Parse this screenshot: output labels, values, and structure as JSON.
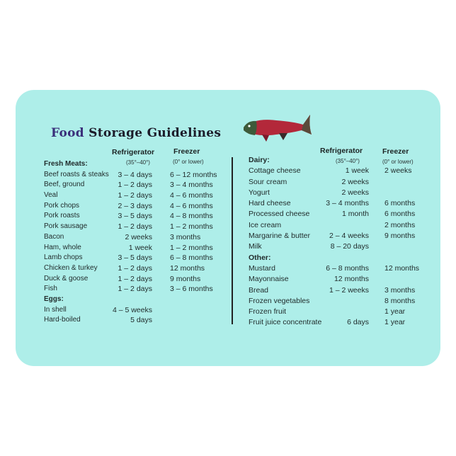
{
  "title": {
    "first": "Food",
    "rest": "Storage Guidelines"
  },
  "columns": {
    "refrigerator": "Refrigerator",
    "refrigerator_temp": "(35°–40°)",
    "freezer": "Freezer",
    "freezer_temp": "(0° or lower)"
  },
  "left": [
    {
      "section": "Fresh Meats:"
    },
    {
      "name": "Beef roasts & steaks",
      "refrigerator": "3 – 4 days",
      "freezer": "6 – 12 months"
    },
    {
      "name": "Beef, ground",
      "refrigerator": "1 – 2 days",
      "freezer": "3 – 4 months"
    },
    {
      "name": "Veal",
      "refrigerator": "1 – 2 days",
      "freezer": "4 – 6 months"
    },
    {
      "name": "Pork chops",
      "refrigerator": "2 – 3 days",
      "freezer": "4 – 6 months"
    },
    {
      "name": "Pork roasts",
      "refrigerator": "3 – 5 days",
      "freezer": "4 – 8 months"
    },
    {
      "name": "Pork sausage",
      "refrigerator": "1 – 2 days",
      "freezer": "1 – 2 months"
    },
    {
      "name": "Bacon",
      "refrigerator": "2 weeks",
      "freezer": "3 months"
    },
    {
      "name": "Ham, whole",
      "refrigerator": "1 week",
      "freezer": "1 – 2 months"
    },
    {
      "name": "Lamb chops",
      "refrigerator": "3 – 5 days",
      "freezer": "6 – 8 months"
    },
    {
      "name": "Chicken & turkey",
      "refrigerator": "1 – 2 days",
      "freezer": "12 months"
    },
    {
      "name": "Duck & goose",
      "refrigerator": "1 – 2 days",
      "freezer": "9 months"
    },
    {
      "name": "Fish",
      "refrigerator": "1 – 2 days",
      "freezer": "3 – 6 months"
    },
    {
      "section": "Eggs:"
    },
    {
      "name": "In shell",
      "refrigerator": "4 – 5 weeks",
      "freezer": ""
    },
    {
      "name": "Hard-boiled",
      "refrigerator": "5 days",
      "freezer": ""
    }
  ],
  "right": [
    {
      "section": "Dairy:"
    },
    {
      "name": "Cottage cheese",
      "refrigerator": "1 week",
      "freezer": "2 weeks"
    },
    {
      "name": "Sour cream",
      "refrigerator": "2 weeks",
      "freezer": ""
    },
    {
      "name": "Yogurt",
      "refrigerator": "2 weeks",
      "freezer": ""
    },
    {
      "name": "Hard cheese",
      "refrigerator": "3 – 4 months",
      "freezer": "6 months"
    },
    {
      "name": "Processed cheese",
      "refrigerator": "1 month",
      "freezer": "6 months"
    },
    {
      "name": "Ice cream",
      "refrigerator": "",
      "freezer": "2 months"
    },
    {
      "name": "Margarine & butter",
      "refrigerator": "2 – 4 weeks",
      "freezer": "9 months"
    },
    {
      "name": "Milk",
      "refrigerator": "8 – 20 days",
      "freezer": ""
    },
    {
      "section": "Other:"
    },
    {
      "name": "Mustard",
      "refrigerator": "6 – 8 months",
      "freezer": "12 months"
    },
    {
      "name": "Mayonnaise",
      "refrigerator": "12 months",
      "freezer": ""
    },
    {
      "name": "Bread",
      "refrigerator": "1 – 2 weeks",
      "freezer": "3 months"
    },
    {
      "name": "Frozen vegetables",
      "refrigerator": "",
      "freezer": "8 months"
    },
    {
      "name": "Frozen fruit",
      "refrigerator": "",
      "freezer": "1 year"
    },
    {
      "name": "Fruit juice concentrate",
      "refrigerator": "6 days",
      "freezer": "1 year"
    }
  ],
  "colors": {
    "card": "#aeeee9",
    "text": "#1f2a2a"
  },
  "icons": {
    "illustration": "fish-icon"
  }
}
